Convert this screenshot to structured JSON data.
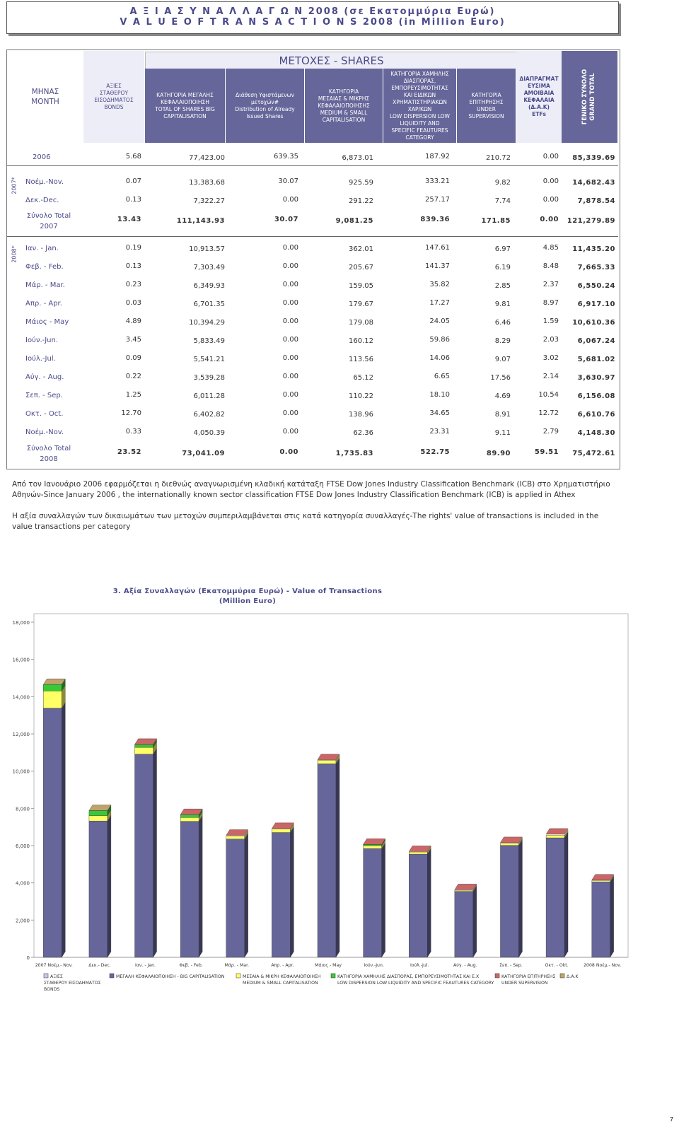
{
  "title": {
    "line1": "Α Ξ Ι Α   Σ Υ Ν Α Λ Λ Α Γ Ω Ν  2008    (σε Εκατομμύρια Ευρώ)",
    "line2": "V A L U E   O F   T R A N S A C T I O N S  2008    (in Million Euro)"
  },
  "table": {
    "shares_banner": "ΜΕΤΟΧΕΣ - SHARES",
    "headers": {
      "month": "ΜΗΝΑΣ\nMONTH",
      "bonds": "ΑΞΙΕΣ\nΣΤΑΘΕΡΟΥ\nΕΙΣΟΔΗΜΑΤΟΣ\nBONDS",
      "big": "ΚΑΤΗΓΟΡΙΑ ΜΕΓΑΛΗΣ\nΚΕΦΑΛΑΙΟΠΟΙΗΣΗ\nTOTAL OF SHARES BIG\nCAPITALISATION",
      "distribution": "Διάθεση Υφιστάμενων\nμετοχών#\nDistribution of Already\nIssued Shares",
      "medium": "ΚΑΤΗΓΟΡΙΑ\nΜΕΣΑΙΑΣ & ΜΙΚΡΗΣ\nΚΕΦΑΛΑΙΟΠΟΙΗΣΗΣ\nMEDIUM & SMALL\nCAPITALISATION",
      "low": "ΚΑΤΗΓΟΡΙΑ ΧΑΜΗΛΗΣ\nΔΙΑΣΠΟΡΑΣ,\nΕΜΠΟΡΕΥΣΙΜΟΤΗΤΑΣ\nΚΑΙ ΕΙΔΙΚΩΝ\nΧΡΗΜΑΤΙΣΤΗΡΙΑΚΩΝ\nΧΑΡ/ΚΩΝ\nLOW DISPERSION LOW\nLIQUIDITY AND\nSPECIFIC FEAUTURES\nCATEGORY",
      "supervision": "ΚΑΤΗΓΟΡΙΑ\nΕΠΙΤΗΡΗΣΗΣ\nUNDER\nSUPERVISION",
      "etf": "ΔΙΑΠΡΑΓΜΑΤ\nΕΥΣΙΜΑ\nΑΜΟΙΒΑΙΑ\nΚΕΦΑΛΑΙΑ\n(Δ.Α.Κ)\nETFs",
      "grand": "ΓΕΝΙΚΟ ΣΥΝΟΛΟ\nGRAND TOTAL"
    },
    "year_tags": {
      "y2007": "2007*",
      "y2008": "2008*"
    },
    "rows": [
      {
        "label": "2006",
        "values": [
          "5.68",
          "77,423.00",
          "639.35",
          "6,873.01",
          "187.92",
          "210.72",
          "0.00",
          "85,339.69"
        ],
        "total": false
      },
      {
        "label": "Νοέμ.-Nov.",
        "values": [
          "0.07",
          "13,383.68",
          "30.07",
          "925.59",
          "333.21",
          "9.82",
          "0.00",
          "14,682.43"
        ],
        "total": false
      },
      {
        "label": "Δεκ.-Dec.",
        "values": [
          "0.13",
          "7,322.27",
          "0.00",
          "291.22",
          "257.17",
          "7.74",
          "0.00",
          "7,878.54"
        ],
        "total": false
      },
      {
        "label": "Σύνολο Total\n2007",
        "values": [
          "13.43",
          "111,143.93",
          "30.07",
          "9,081.25",
          "839.36",
          "171.85",
          "0.00",
          "121,279.89"
        ],
        "total": true
      },
      {
        "label": "Ιαν. - Jan.",
        "values": [
          "0.19",
          "10,913.57",
          "0.00",
          "362.01",
          "147.61",
          "6.97",
          "4.85",
          "11,435.20"
        ],
        "total": false
      },
      {
        "label": "Φεβ. - Feb.",
        "values": [
          "0.13",
          "7,303.49",
          "0.00",
          "205.67",
          "141.37",
          "6.19",
          "8.48",
          "7,665.33"
        ],
        "total": false
      },
      {
        "label": "Μάρ. - Mar.",
        "values": [
          "0.23",
          "6,349.93",
          "0.00",
          "159.05",
          "35.82",
          "2.85",
          "2.37",
          "6,550.24"
        ],
        "total": false
      },
      {
        "label": "Απρ. - Apr.",
        "values": [
          "0.03",
          "6,701.35",
          "0.00",
          "179.67",
          "17.27",
          "9.81",
          "8.97",
          "6,917.10"
        ],
        "total": false
      },
      {
        "label": "Μάιος - May",
        "values": [
          "4.89",
          "10,394.29",
          "0.00",
          "179.08",
          "24.05",
          "6.46",
          "1.59",
          "10,610.36"
        ],
        "total": false
      },
      {
        "label": "Ιούν.-Jun.",
        "values": [
          "3.45",
          "5,833.49",
          "0.00",
          "160.12",
          "59.86",
          "8.29",
          "2.03",
          "6,067.24"
        ],
        "total": false
      },
      {
        "label": "Ιούλ.-Jul.",
        "values": [
          "0.09",
          "5,541.21",
          "0.00",
          "113.56",
          "14.06",
          "9.07",
          "3.02",
          "5,681.02"
        ],
        "total": false
      },
      {
        "label": "Αύγ. - Aug.",
        "values": [
          "0.22",
          "3,539.28",
          "0.00",
          "65.12",
          "6.65",
          "17.56",
          "2.14",
          "3,630.97"
        ],
        "total": false
      },
      {
        "label": "Σεπ. - Sep.",
        "values": [
          "1.25",
          "6,011.28",
          "0.00",
          "110.22",
          "18.10",
          "4.69",
          "10.54",
          "6,156.08"
        ],
        "total": false
      },
      {
        "label": "Οκτ. - Oct.",
        "values": [
          "12.70",
          "6,402.82",
          "0.00",
          "138.96",
          "34.65",
          "8.91",
          "12.72",
          "6,610.76"
        ],
        "total": false
      },
      {
        "label": "Νοέμ.-Nov.",
        "values": [
          "0.33",
          "4,050.39",
          "0.00",
          "62.36",
          "23.31",
          "9.11",
          "2.79",
          "4,148.30"
        ],
        "total": false
      },
      {
        "label": "Σύνολο Total\n2008",
        "values": [
          "23.52",
          "73,041.09",
          "0.00",
          "1,735.83",
          "522.75",
          "89.90",
          "59.51",
          "75,472.61"
        ],
        "total": true
      }
    ]
  },
  "notes": {
    "note1": "Από τον Ιανουάριο 2006  εφαρμόζεται η διεθνώς αναγνωρισμένη κλαδική κατάταξη FTSE Dow Jones Industry Classification Benchmark (ICB) στο Χρηματιστήριο Αθηνών-Since January 2006 ,  the internationally known sector classification  FTSE Dow Jones Industry Classification Benchmark (ICB)  is applied in Athex",
    "note2": " Η αξία συναλλαγών των δικαιωμάτων των μετοχών συμπεριλαμβάνεται στις κατά κατηγορία συναλλαγές-The rights' value of transactions is included in the value transactions per category"
  },
  "chart_data": {
    "type": "bar",
    "stacked": true,
    "title": "3.  Αξία Συναλλαγών (Εκατομμύρια Ευρώ) - Value of Transactions\n(Million Euro)",
    "categories": [
      "2007 Νοέμ.- Nov.",
      "Δεκ.- Dec.",
      "Ιαν. - Jan.",
      "Φεβ. - Feb.",
      "Μάρ. - Mar.",
      "Απρ. - Apr.",
      "Μάιος - May",
      "Ιούν.-Jun.",
      "Ιούλ.-Jul.",
      "Αύγ. - Aug.",
      "Σεπ. - Sep.",
      "Οκτ. - Okt.",
      "2008 Νοέμ.- Nov."
    ],
    "ylim": [
      0,
      18000
    ],
    "yticks": [
      "0",
      "2,000",
      "4,000",
      "6,000",
      "8,000",
      "10,000",
      "12,000",
      "14,000",
      "16,000",
      "18,000"
    ],
    "grid": false,
    "legend_position": "bottom",
    "series": [
      {
        "name": "ΑΞΙΕΣ ΣΤΑΘΕΡΟΥ ΕΙΣΟΔΗΜΑΤΟΣ BONDS",
        "color": "#c8c8e8",
        "values": [
          0.07,
          0.13,
          0.19,
          0.13,
          0.23,
          0.03,
          4.89,
          3.45,
          0.09,
          0.22,
          1.25,
          12.7,
          0.33
        ]
      },
      {
        "name": "ΜΕΓΑΛΗ ΚΕΦΑΛΑΙΟΠΟΙΗΣΗ - BIG CAPITALISATION",
        "color": "#66669a",
        "values": [
          13383.68,
          7322.27,
          10913.57,
          7303.49,
          6349.93,
          6701.35,
          10394.29,
          5833.49,
          5541.21,
          3539.28,
          6011.28,
          6402.82,
          4050.39
        ]
      },
      {
        "name": "ΜΕΣΑΙΑ & ΜΙΚΡΗ ΚΕΦΑΛΑΙΟΠΟΙΗΣΗ MEDIUM & SMALL CAPITALISATION",
        "color": "#ffff66",
        "values": [
          925.59,
          291.22,
          362.01,
          205.67,
          159.05,
          179.67,
          179.08,
          160.12,
          113.56,
          65.12,
          110.22,
          138.96,
          62.36
        ]
      },
      {
        "name": "ΚΑΤΗΓΟΡΙΑ ΧΑΜΗΛΗΣ ΔΙΑΣΠΟΡΑΣ, ΕΜΠΟΡΕΥΣΙΜΟΤΗΤΑΣ ΚΑΙ Ε.Χ LOW DISPERSION LOW LIQUIDITY AND SPECIFIC FEAUTURES CATEGORY",
        "color": "#33cc33",
        "values": [
          333.21,
          257.17,
          147.61,
          141.37,
          35.82,
          17.27,
          24.05,
          59.86,
          14.06,
          6.65,
          18.1,
          34.65,
          23.31
        ]
      },
      {
        "name": "ΚΑΤΗΓΟΡΙΑ ΕΠΙΤΗΡΗΣΗΣ UNDER SUPERVISION",
        "color": "#cc6666",
        "values": [
          9.82,
          7.74,
          6.97,
          6.19,
          2.85,
          9.81,
          6.46,
          8.29,
          9.07,
          17.56,
          4.69,
          8.91,
          9.11
        ]
      },
      {
        "name": "Δ.Α.Κ",
        "color": "#bfa36b",
        "values": [
          0.0,
          0.0,
          4.85,
          8.48,
          2.37,
          8.97,
          1.59,
          2.03,
          3.02,
          2.14,
          10.54,
          12.72,
          2.79
        ]
      }
    ],
    "legend_labels": [
      "ΑΞΙΕΣ\nΣΤΑΘΕΡΟΥ ΕΙΣΟΔΗΜΑΤΟΣ\nBONDS",
      "ΜΕΓΑΛΗ ΚΕΦΑΛΑΙΟΠΟΙΗΣΗ - BIG CAPITALISATION",
      "ΜΕΣΑΙΑ & ΜΙΚΡΗ ΚΕΦΑΛΑΙΟΠΟΙΗΣΗ\nMEDIUM & SMALL CAPITALISATION",
      "ΚΑΤΗΓΟΡΙΑ ΧΑΜΗΛΗΣ ΔΙΑΣΠΟΡΑΣ, ΕΜΠΟΡΕΥΣΙΜΟΤΗΤΑΣ ΚΑΙ Ε.Χ\nLOW DISPERSION LOW LIQUIDITY AND SPECIFIC FEAUTURES CATEGORY",
      "ΚΑΤΗΓΟΡΙΑ ΕΠΙΤΗΡΗΣΗΣ\nUNDER SUPERVISION",
      "Δ.Α.Κ"
    ]
  },
  "page_number": "7"
}
